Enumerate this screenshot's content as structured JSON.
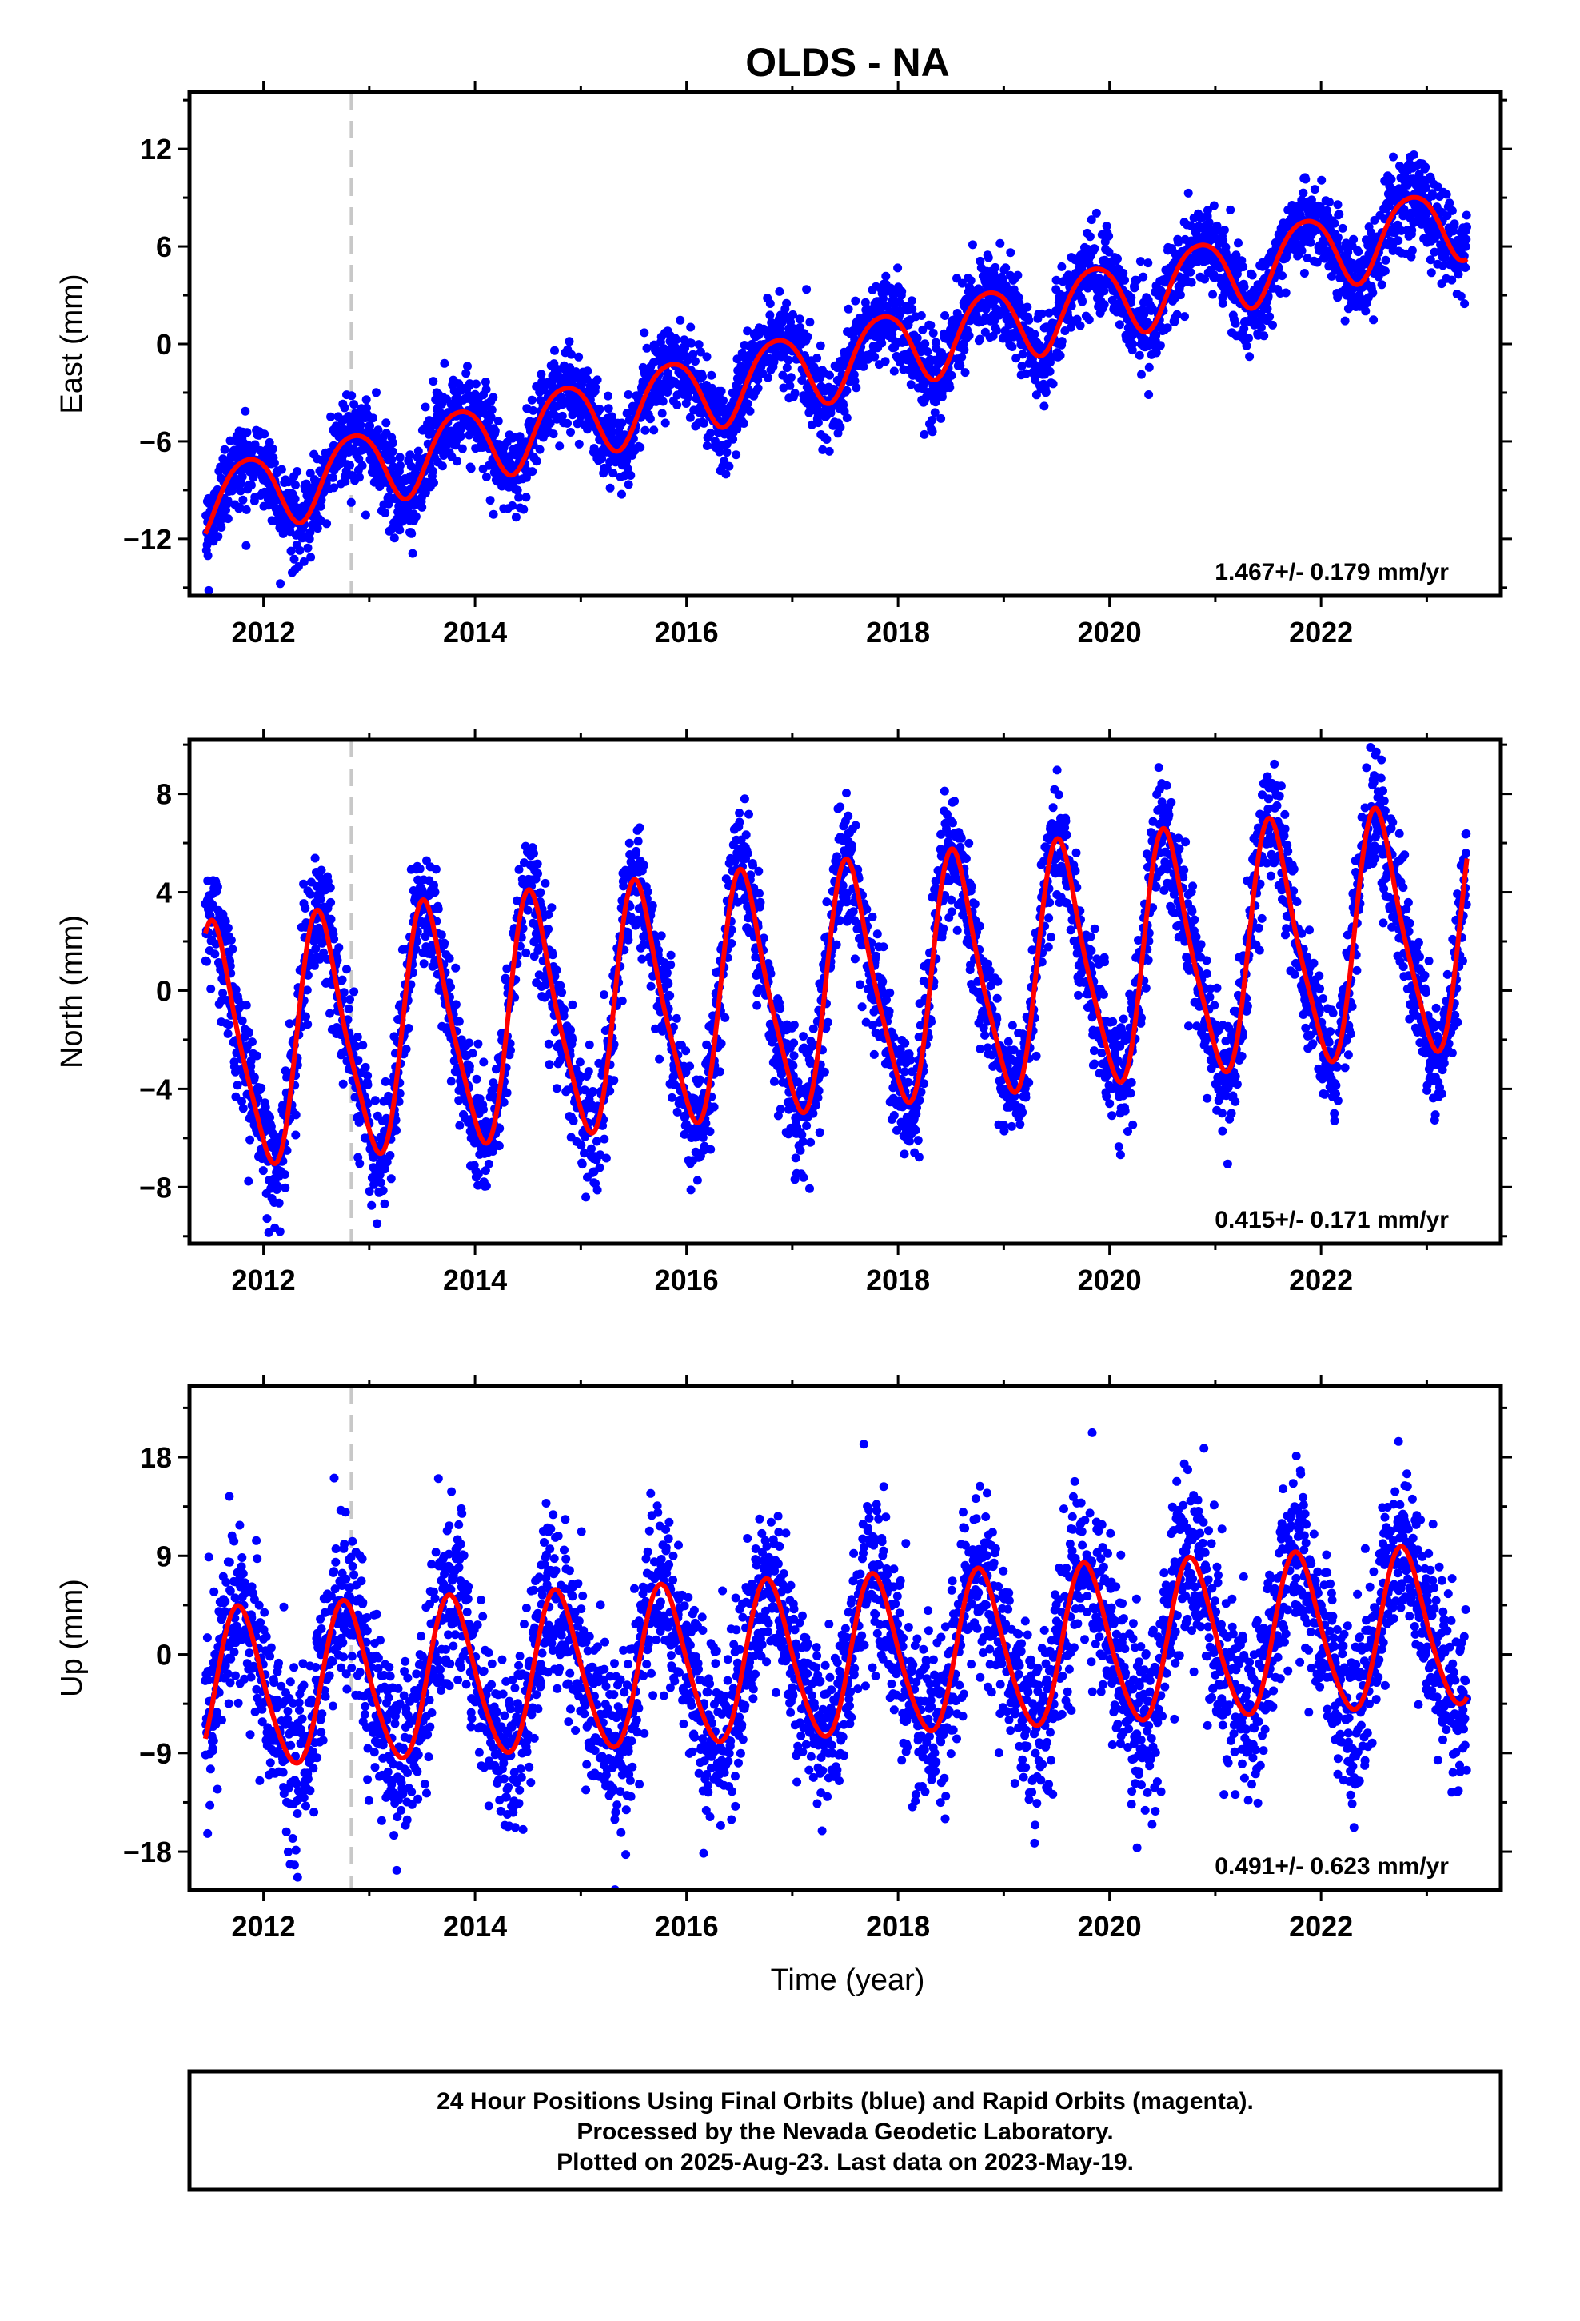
{
  "title": "OLDS - NA",
  "xlabel": "Time (year)",
  "colors": {
    "points": "#0000ff",
    "fit": "#ff0000",
    "event_line": "#c8c8c8",
    "frame": "#000000"
  },
  "footer": {
    "line1": "24 Hour Positions Using Final Orbits (blue) and Rapid Orbits (magenta).",
    "line2": "Processed by the Nevada Geodetic Laboratory.",
    "line3": "Plotted on 2025-Aug-23. Last data on 2023-May-19."
  },
  "chart_data": [
    {
      "type": "scatter",
      "name": "east",
      "ylabel": "East (mm)",
      "rate_label": "1.467+/- 0.179 mm/yr",
      "xlim": [
        2011.3,
        2023.7
      ],
      "ylim": [
        -15.5,
        15.5
      ],
      "x_ticks": [
        2012,
        2014,
        2016,
        2018,
        2020,
        2022
      ],
      "x_tick_labels": [
        "2012",
        "2014",
        "2016",
        "2018",
        "2020",
        "2022"
      ],
      "y_ticks": [
        12,
        6,
        0,
        -6,
        -12
      ],
      "y_tick_labels": [
        "12",
        "6",
        "0",
        "−6",
        "−12"
      ],
      "x_data_start": 2011.45,
      "x_data_end": 2023.38,
      "event_line_x": 2012.83,
      "model": {
        "ref_year": 2017.4,
        "offset": -1.0,
        "rate": 1.467,
        "annual_amp": 2.3,
        "annual_peak": 0.85,
        "semiannual_amp": 0.3,
        "semiannual_peak": 0.1
      },
      "scatter_sd": 1.3
    },
    {
      "type": "scatter",
      "name": "north",
      "ylabel": "North (mm)",
      "rate_label": "0.415+/- 0.171 mm/yr",
      "xlim": [
        2011.3,
        2023.7
      ],
      "ylim": [
        -10.3,
        10.2
      ],
      "x_ticks": [
        2012,
        2014,
        2016,
        2018,
        2020,
        2022
      ],
      "x_tick_labels": [
        "2012",
        "2014",
        "2016",
        "2018",
        "2020",
        "2022"
      ],
      "y_ticks": [
        8,
        4,
        0,
        -4,
        -8
      ],
      "y_tick_labels": [
        "8",
        "4",
        "0",
        "−4",
        "−8"
      ],
      "x_data_start": 2011.45,
      "x_data_end": 2023.38,
      "event_line_x": 2012.83,
      "model": {
        "ref_year": 2017.4,
        "offset": 0.0,
        "rate": 0.415,
        "annual_amp": 4.8,
        "annual_peak": 0.55,
        "semiannual_amp": 0.9,
        "semiannual_peak": 0.45
      },
      "scatter_sd": 1.2
    },
    {
      "type": "scatter",
      "name": "up",
      "ylabel": "Up (mm)",
      "rate_label": "0.491+/- 0.623 mm/yr",
      "xlim": [
        2011.3,
        2023.7
      ],
      "ylim": [
        -21.5,
        24.5
      ],
      "x_ticks": [
        2012,
        2014,
        2016,
        2018,
        2020,
        2022
      ],
      "x_tick_labels": [
        "2012",
        "2014",
        "2016",
        "2018",
        "2020",
        "2022"
      ],
      "y_ticks": [
        18,
        9,
        0,
        -9,
        -18
      ],
      "y_tick_labels": [
        "18",
        "9",
        "0",
        "−9",
        "−18"
      ],
      "x_data_start": 2011.45,
      "x_data_end": 2023.38,
      "event_line_x": 2012.83,
      "model": {
        "ref_year": 2017.4,
        "offset": -0.5,
        "rate": 0.491,
        "annual_amp": 7.2,
        "annual_peak": 0.78,
        "semiannual_amp": 0.8,
        "semiannual_peak": 0.2
      },
      "scatter_sd": 4.0
    }
  ]
}
